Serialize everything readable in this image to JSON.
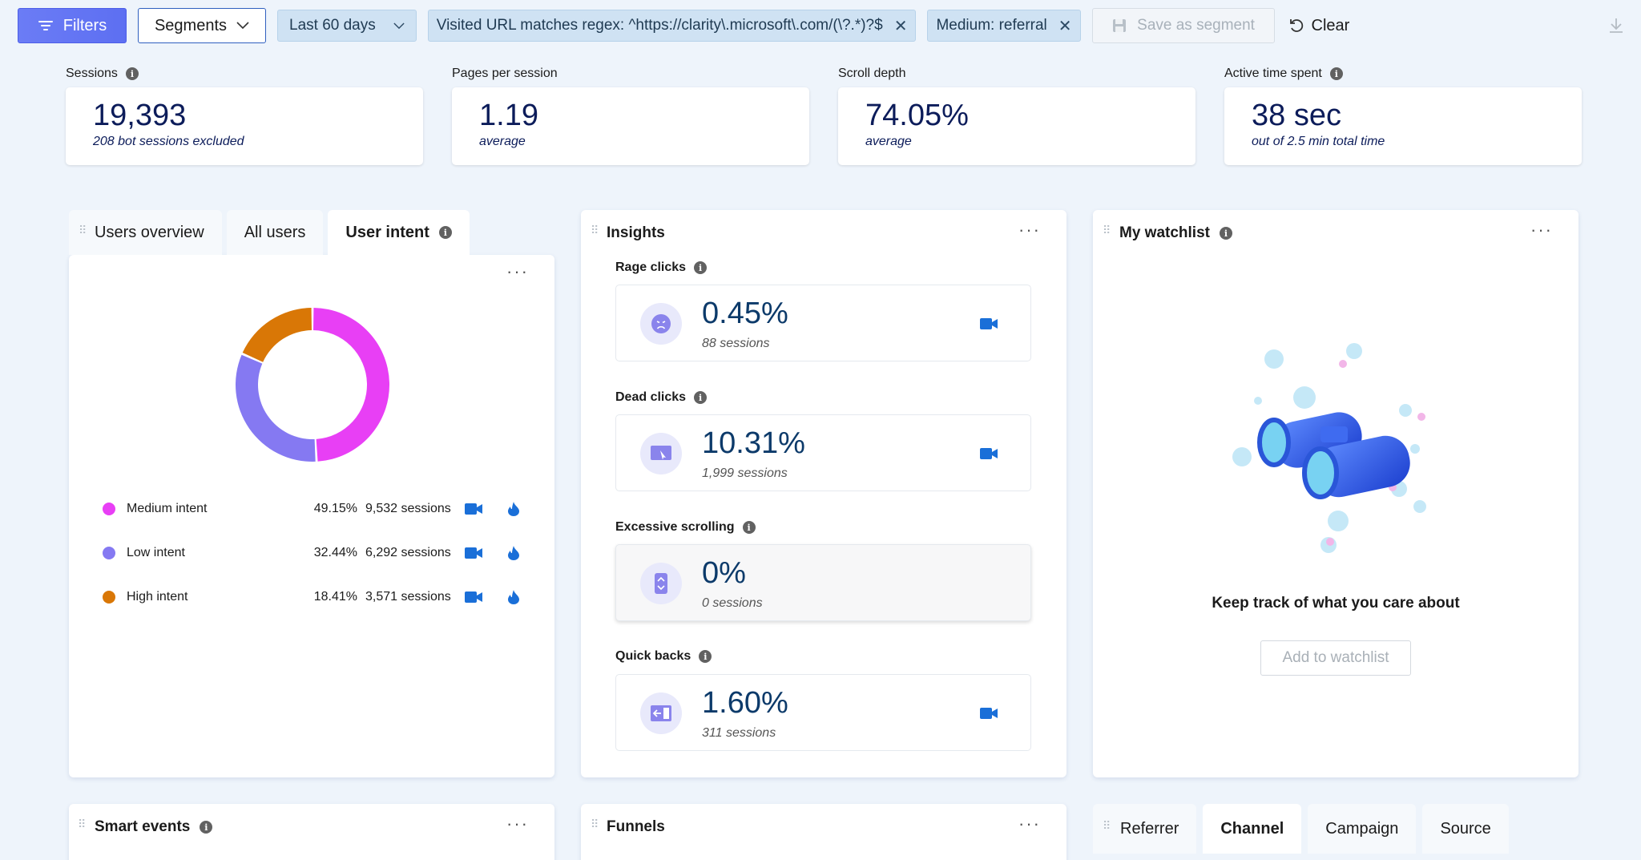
{
  "toolbar": {
    "filters_label": "Filters",
    "segments_label": "Segments",
    "date_range": "Last 60 days",
    "chips": [
      "Visited URL matches regex: ^https://clarity\\.microsoft\\.com/(\\?.*)?$",
      "Medium: referral"
    ],
    "save_label": "Save as segment",
    "clear_label": "Clear"
  },
  "metrics": [
    {
      "label": "Sessions",
      "value": "19,393",
      "sub": "208 bot sessions excluded",
      "info": true
    },
    {
      "label": "Pages per session",
      "value": "1.19",
      "sub": "average",
      "info": false
    },
    {
      "label": "Scroll depth",
      "value": "74.05%",
      "sub": "average",
      "info": false
    },
    {
      "label": "Active time spent",
      "value": "38 sec",
      "sub": "out of 2.5 min total time",
      "info": true
    }
  ],
  "users_panel": {
    "tabs": [
      "Users overview",
      "All users",
      "User intent"
    ],
    "active_tab": "User intent",
    "legend": [
      {
        "name": "Medium intent",
        "pct": "49.15%",
        "sessions": "9,532 sessions",
        "color": "#e83ff5"
      },
      {
        "name": "Low intent",
        "pct": "32.44%",
        "sessions": "6,292 sessions",
        "color": "#8579f2"
      },
      {
        "name": "High intent",
        "pct": "18.41%",
        "sessions": "3,571 sessions",
        "color": "#d97706"
      }
    ],
    "donut_shares": [
      0.4915,
      0.3244,
      0.1841
    ]
  },
  "insights": {
    "title": "Insights",
    "items": [
      {
        "label": "Rage clicks",
        "value": "0.45%",
        "sub": "88 sessions",
        "icon": "angry-face-icon"
      },
      {
        "label": "Dead clicks",
        "value": "10.31%",
        "sub": "1,999 sessions",
        "icon": "dead-click-icon"
      },
      {
        "label": "Excessive scrolling",
        "value": "0%",
        "sub": "0 sessions",
        "icon": "scroll-icon"
      },
      {
        "label": "Quick backs",
        "value": "1.60%",
        "sub": "311 sessions",
        "icon": "back-arrow-icon"
      }
    ]
  },
  "watchlist": {
    "title": "My watchlist",
    "message": "Keep track of what you care about",
    "button": "Add to watchlist"
  },
  "bottom": {
    "smart_events": "Smart events",
    "funnels": "Funnels",
    "tabs": [
      "Referrer",
      "Channel",
      "Campaign",
      "Source"
    ],
    "active_tab": "Channel"
  }
}
